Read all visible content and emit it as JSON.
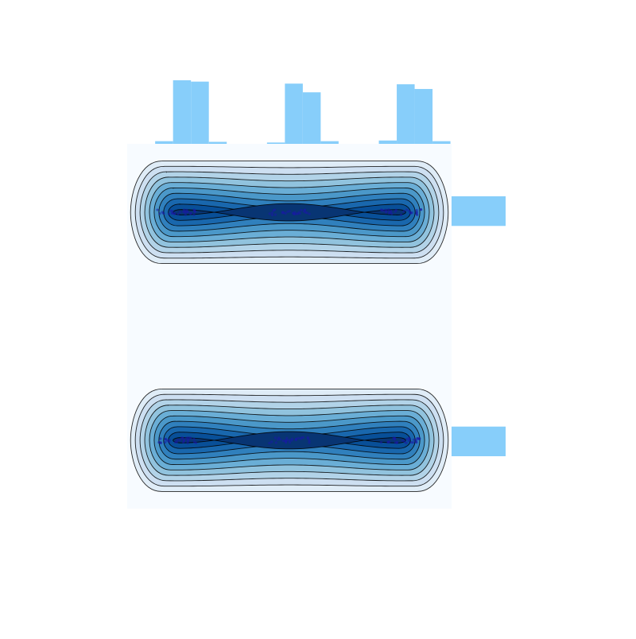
{
  "chart_data": {
    "type": "kde_joint",
    "title": "",
    "xlabel": "",
    "ylabel": "",
    "xlim": [
      -1.45,
      1.45
    ],
    "ylim": [
      -0.3,
      1.3
    ],
    "grid": false,
    "legend": "none",
    "colors": {
      "kde_light": "#f7fbff",
      "kde_dark": "#08306b",
      "contour_line": "#000000",
      "scatter": "#1a1aa6",
      "marginal_bar": "#87cefa"
    },
    "kde": {
      "levels": 10,
      "band_y_centers": [
        1,
        0
      ],
      "band_x_range": [
        -1,
        1
      ]
    },
    "clusters": [
      {
        "x": -1,
        "y": 1
      },
      {
        "x": 0,
        "y": 1
      },
      {
        "x": 1,
        "y": 1
      },
      {
        "x": -1,
        "y": 0
      },
      {
        "x": 0,
        "y": 0
      },
      {
        "x": 1,
        "y": 0
      }
    ],
    "marginal_x": {
      "bins": [
        {
          "x0": -1.2,
          "x1": -1.04,
          "count": 4
        },
        {
          "x0": -1.04,
          "x1": -0.88,
          "count": 95
        },
        {
          "x0": -0.88,
          "x1": -0.72,
          "count": 93
        },
        {
          "x0": -0.72,
          "x1": -0.56,
          "count": 3
        },
        {
          "x0": -0.2,
          "x1": -0.04,
          "count": 2
        },
        {
          "x0": -0.04,
          "x1": 0.12,
          "count": 90
        },
        {
          "x0": 0.12,
          "x1": 0.28,
          "count": 77
        },
        {
          "x0": 0.28,
          "x1": 0.44,
          "count": 4
        },
        {
          "x0": 0.8,
          "x1": 0.96,
          "count": 5
        },
        {
          "x0": 0.96,
          "x1": 1.12,
          "count": 89
        },
        {
          "x0": 1.12,
          "x1": 1.28,
          "count": 82
        },
        {
          "x0": 1.28,
          "x1": 1.44,
          "count": 4
        }
      ]
    },
    "marginal_y": {
      "bins": [
        {
          "y0": 0.94,
          "y1": 1.07,
          "count": 300
        },
        {
          "y0": -0.07,
          "y1": 0.06,
          "count": 300
        }
      ]
    }
  }
}
